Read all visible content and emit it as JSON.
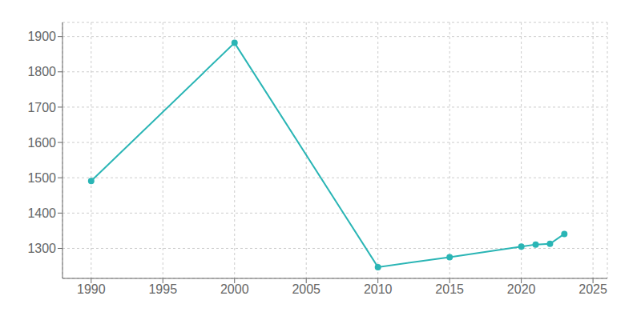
{
  "chart_data": {
    "type": "line",
    "x": [
      1990,
      2000,
      2010,
      2015,
      2020,
      2021,
      2022,
      2023
    ],
    "values": [
      1491,
      1882,
      1247,
      1275,
      1305,
      1311,
      1313,
      1341
    ],
    "color": "#2ab5b5",
    "marker": "circle",
    "xlim": [
      1988,
      2026
    ],
    "ylim": [
      1215,
      1940
    ],
    "xticks": [
      1990,
      1995,
      2000,
      2005,
      2010,
      2015,
      2020,
      2025
    ],
    "yticks": [
      1300,
      1400,
      1500,
      1600,
      1700,
      1800,
      1900
    ],
    "grid": true
  }
}
